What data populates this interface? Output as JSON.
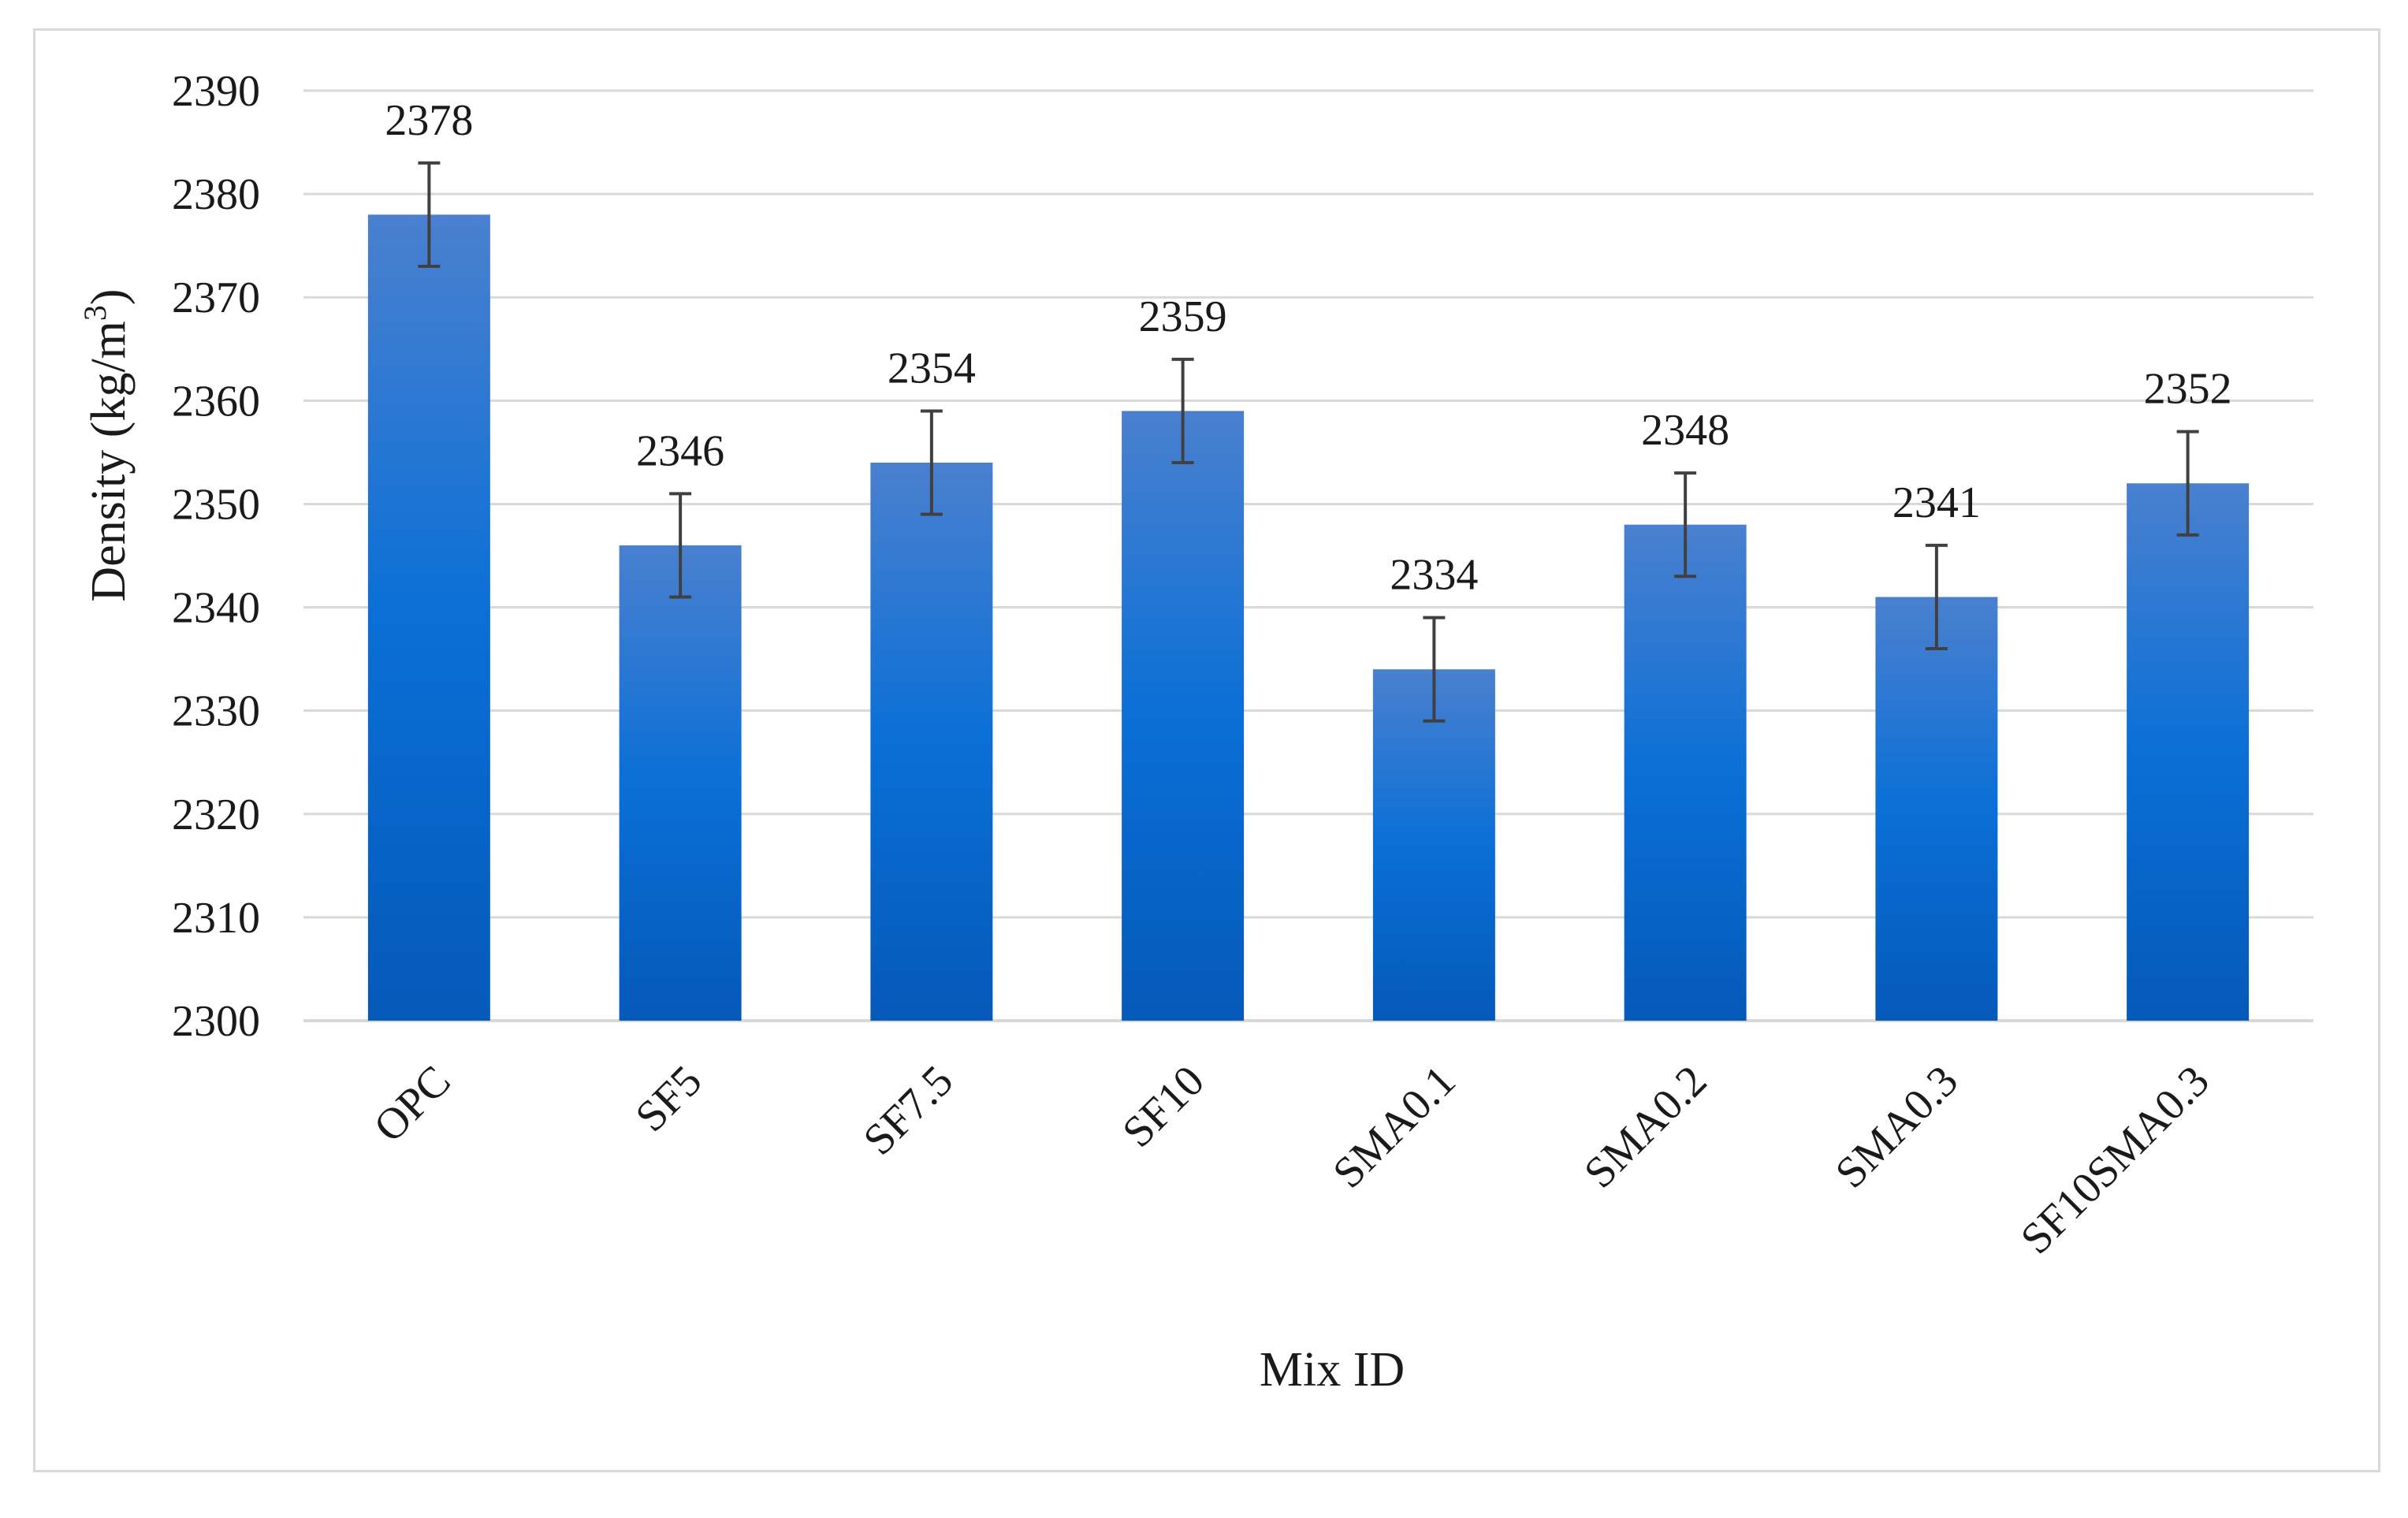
{
  "chart_data": {
    "type": "bar",
    "title": "",
    "xlabel": "Mix ID",
    "ylabel": "Density (kg/m",
    "ylabel_superscript": "3",
    "ylabel_suffix": ")",
    "categories": [
      "OPC",
      "SF5",
      "SF7.5",
      "SF10",
      "SMA0.1",
      "SMA0.2",
      "SMA0.3",
      "SF10SMA0.3"
    ],
    "values": [
      2378,
      2346,
      2354,
      2359,
      2334,
      2348,
      2341,
      2352
    ],
    "error": [
      5,
      5,
      5,
      5,
      5,
      5,
      5,
      5
    ],
    "data_labels": [
      "2378",
      "2346",
      "2354",
      "2359",
      "2334",
      "2348",
      "2341",
      "2352"
    ],
    "ylim": [
      2300,
      2390
    ],
    "yticks": [
      2300,
      2310,
      2320,
      2330,
      2340,
      2350,
      2360,
      2370,
      2380,
      2390
    ],
    "grid": true,
    "legend": "none",
    "colors": {
      "bar_top": "#4a80cf",
      "bar_mid": "#0a6fd6",
      "bar_bottom": "#0559b9",
      "grid": "#d9d9d9",
      "errorbar": "#404040"
    }
  }
}
